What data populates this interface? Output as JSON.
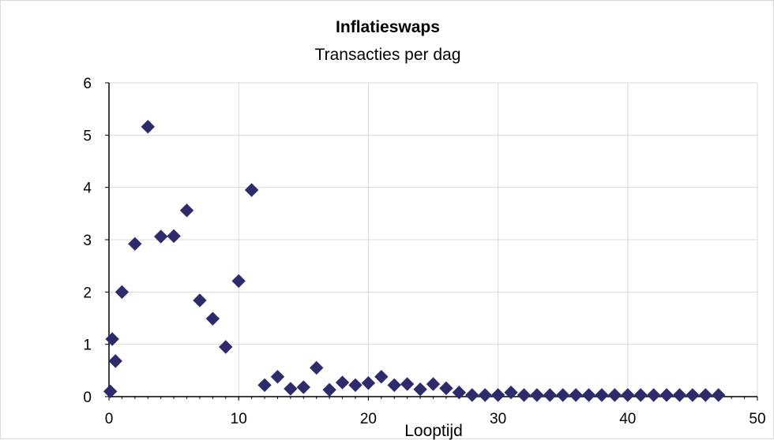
{
  "chart_data": {
    "type": "scatter",
    "title": "Inflatieswaps",
    "subtitle": "Transacties per dag",
    "xlabel": "Looptijd",
    "ylabel": "",
    "xlim": [
      0,
      50
    ],
    "ylim": [
      0,
      6
    ],
    "xticks": [
      0,
      10,
      20,
      30,
      40,
      50
    ],
    "yticks": [
      0,
      1,
      2,
      3,
      4,
      5,
      6
    ],
    "grid": true,
    "legend": "none",
    "marker": "diamond",
    "marker_color": "#2e2a6b",
    "series": [
      {
        "points": [
          [
            0.1,
            0.1
          ],
          [
            0.25,
            1.1
          ],
          [
            0.5,
            0.68
          ],
          [
            1,
            2.0
          ],
          [
            2,
            2.92
          ],
          [
            3,
            5.16
          ],
          [
            4,
            3.06
          ],
          [
            5,
            3.07
          ],
          [
            6,
            3.56
          ],
          [
            7,
            1.84
          ],
          [
            8,
            1.49
          ],
          [
            9,
            0.95
          ],
          [
            10,
            2.21
          ],
          [
            11,
            3.95
          ],
          [
            12,
            0.22
          ],
          [
            13,
            0.38
          ],
          [
            14,
            0.15
          ],
          [
            15,
            0.18
          ],
          [
            16,
            0.55
          ],
          [
            17,
            0.13
          ],
          [
            18,
            0.27
          ],
          [
            19,
            0.22
          ],
          [
            20,
            0.26
          ],
          [
            21,
            0.38
          ],
          [
            22,
            0.22
          ],
          [
            23,
            0.24
          ],
          [
            24,
            0.14
          ],
          [
            25,
            0.24
          ],
          [
            26,
            0.16
          ],
          [
            27,
            0.08
          ],
          [
            28,
            0.03
          ],
          [
            29,
            0.03
          ],
          [
            30,
            0.03
          ],
          [
            31,
            0.08
          ],
          [
            32,
            0.03
          ],
          [
            33,
            0.03
          ],
          [
            34,
            0.03
          ],
          [
            35,
            0.03
          ],
          [
            36,
            0.03
          ],
          [
            37,
            0.03
          ],
          [
            38,
            0.03
          ],
          [
            39,
            0.03
          ],
          [
            40,
            0.03
          ],
          [
            41,
            0.03
          ],
          [
            42,
            0.03
          ],
          [
            43,
            0.03
          ],
          [
            44,
            0.03
          ],
          [
            45,
            0.03
          ],
          [
            46,
            0.03
          ],
          [
            47,
            0.03
          ]
        ]
      }
    ]
  }
}
